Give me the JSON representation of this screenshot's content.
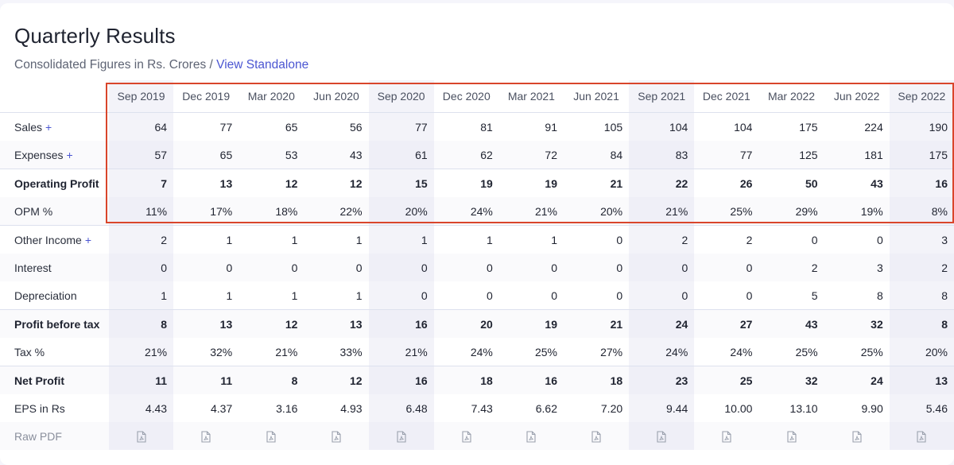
{
  "header": {
    "title": "Quarterly Results",
    "subtitle_prefix": "Consolidated Figures in Rs. Crores / ",
    "view_link": "View Standalone"
  },
  "table": {
    "columns": [
      "Sep 2019",
      "Dec 2019",
      "Mar 2020",
      "Jun 2020",
      "Sep 2020",
      "Dec 2020",
      "Mar 2021",
      "Jun 2021",
      "Sep 2021",
      "Dec 2021",
      "Mar 2022",
      "Jun 2022",
      "Sep 2022"
    ],
    "rows": [
      {
        "label": "Sales",
        "plus": "+",
        "values": [
          "64",
          "77",
          "65",
          "56",
          "77",
          "81",
          "91",
          "105",
          "104",
          "104",
          "175",
          "224",
          "190"
        ]
      },
      {
        "label": "Expenses",
        "plus": "+",
        "values": [
          "57",
          "65",
          "53",
          "43",
          "61",
          "62",
          "72",
          "84",
          "83",
          "77",
          "125",
          "181",
          "175"
        ]
      },
      {
        "label": "Operating Profit",
        "values": [
          "7",
          "13",
          "12",
          "12",
          "15",
          "19",
          "19",
          "21",
          "22",
          "26",
          "50",
          "43",
          "16"
        ]
      },
      {
        "label": "OPM %",
        "values": [
          "11%",
          "17%",
          "18%",
          "22%",
          "20%",
          "24%",
          "21%",
          "20%",
          "21%",
          "25%",
          "29%",
          "19%",
          "8%"
        ]
      },
      {
        "label": "Other Income",
        "plus": "+",
        "values": [
          "2",
          "1",
          "1",
          "1",
          "1",
          "1",
          "1",
          "0",
          "2",
          "2",
          "0",
          "0",
          "3"
        ]
      },
      {
        "label": "Interest",
        "values": [
          "0",
          "0",
          "0",
          "0",
          "0",
          "0",
          "0",
          "0",
          "0",
          "0",
          "2",
          "3",
          "2"
        ]
      },
      {
        "label": "Depreciation",
        "values": [
          "1",
          "1",
          "1",
          "1",
          "0",
          "0",
          "0",
          "0",
          "0",
          "0",
          "5",
          "8",
          "8"
        ]
      },
      {
        "label": "Profit before tax",
        "values": [
          "8",
          "13",
          "12",
          "13",
          "16",
          "20",
          "19",
          "21",
          "24",
          "27",
          "43",
          "32",
          "8"
        ]
      },
      {
        "label": "Tax %",
        "values": [
          "21%",
          "32%",
          "21%",
          "33%",
          "21%",
          "24%",
          "25%",
          "27%",
          "24%",
          "24%",
          "25%",
          "25%",
          "20%"
        ]
      },
      {
        "label": "Net Profit",
        "values": [
          "11",
          "11",
          "8",
          "12",
          "16",
          "18",
          "16",
          "18",
          "23",
          "25",
          "32",
          "24",
          "13"
        ]
      },
      {
        "label": "EPS in Rs",
        "values": [
          "4.43",
          "4.37",
          "3.16",
          "4.93",
          "6.48",
          "7.43",
          "6.62",
          "7.20",
          "9.44",
          "10.00",
          "13.10",
          "9.90",
          "5.46"
        ]
      },
      {
        "label": "Raw PDF"
      }
    ],
    "pdf_icon": "pdf-file-icon"
  },
  "colors": {
    "accent": "#4b56d2",
    "highlight_box": "#d9452b"
  }
}
